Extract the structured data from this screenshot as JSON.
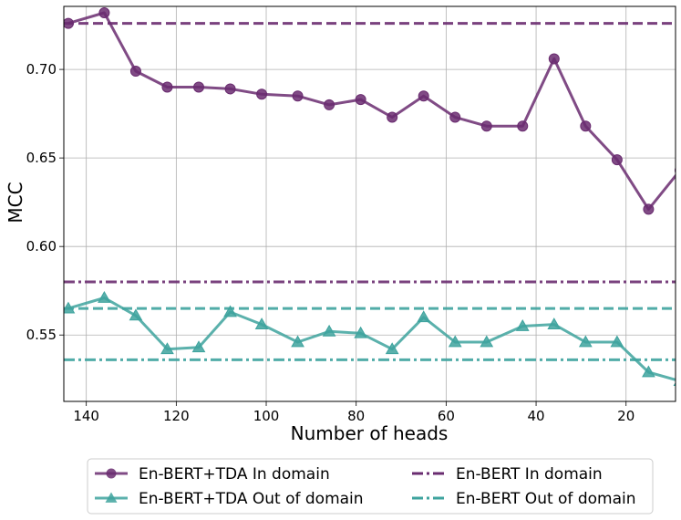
{
  "chart_data": {
    "type": "line",
    "title": "",
    "xlabel": "Number of heads",
    "ylabel": "MCC",
    "xlim": [
      145,
      9
    ],
    "ylim": [
      0.5125,
      0.7356
    ],
    "x_inverted": true,
    "grid": true,
    "legend_position": "below-plot",
    "x_ticks": [
      140,
      120,
      100,
      80,
      60,
      40,
      20
    ],
    "y_ticks": [
      0.55,
      0.6,
      0.65,
      0.7
    ],
    "x_tick_labels": [
      "140",
      "120",
      "100",
      "80",
      "60",
      "40",
      "20"
    ],
    "y_tick_labels": [
      "0.55",
      "0.60",
      "0.65",
      "0.70"
    ],
    "x": [
      144,
      136,
      129,
      122,
      115,
      108,
      101,
      93,
      86,
      79,
      72,
      65,
      58,
      51,
      43,
      36,
      29,
      22,
      15,
      8
    ],
    "series": [
      {
        "name": "En-BERT+TDA In domain",
        "color": "#6a2c70",
        "marker": "circle",
        "values": [
          0.726,
          0.732,
          0.699,
          0.69,
          0.69,
          0.689,
          0.686,
          0.685,
          0.68,
          0.683,
          0.673,
          0.685,
          0.673,
          0.668,
          0.668,
          0.706,
          0.668,
          0.649,
          0.621,
          0.643
        ]
      },
      {
        "name": "En-BERT+TDA Out of domain",
        "color": "#3ea39e",
        "marker": "triangle",
        "values": [
          0.565,
          0.571,
          0.561,
          0.542,
          0.543,
          0.563,
          0.556,
          0.546,
          0.552,
          0.551,
          0.542,
          0.56,
          0.546,
          0.546,
          0.555,
          0.556,
          0.546,
          0.546,
          0.529,
          0.524
        ]
      }
    ],
    "reference_lines": [
      {
        "name": "",
        "value": 0.726,
        "color": "#6a2c70",
        "style": "dashed"
      },
      {
        "name": "",
        "value": 0.565,
        "color": "#3ea39e",
        "style": "dashed"
      },
      {
        "name": "En-BERT In domain",
        "value": 0.58,
        "color": "#6a2c70",
        "style": "dashdot"
      },
      {
        "name": "En-BERT Out of domain",
        "value": 0.536,
        "color": "#3ea39e",
        "style": "dashdot"
      }
    ]
  },
  "legend": {
    "items": [
      {
        "label": "En-BERT+TDA In domain",
        "color": "#6a2c70",
        "kind": "circle"
      },
      {
        "label": "En-BERT+TDA Out of domain",
        "color": "#3ea39e",
        "kind": "triangle"
      },
      {
        "label": "En-BERT In domain",
        "color": "#6a2c70",
        "kind": "dashdot"
      },
      {
        "label": "En-BERT Out of domain",
        "color": "#3ea39e",
        "kind": "dashdot"
      }
    ]
  }
}
